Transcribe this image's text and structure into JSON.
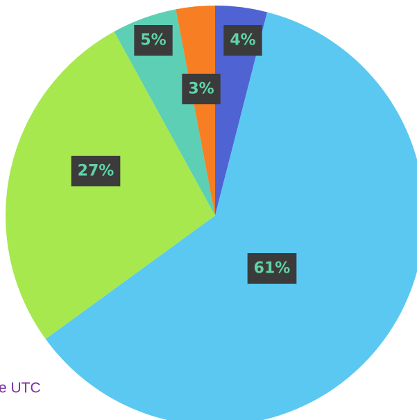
{
  "chart_data": {
    "type": "pie",
    "categories": [
      null,
      null,
      null,
      null,
      null
    ],
    "values": [
      4,
      61,
      27,
      5,
      3
    ],
    "value_labels": [
      "4%",
      "61%",
      "27%",
      "5%",
      "3%"
    ],
    "colors": [
      "#4f63d2",
      "#5bc8f2",
      "#a7e84f",
      "#5ccfb4",
      "#f77e22"
    ],
    "annotation": "e UTC"
  }
}
